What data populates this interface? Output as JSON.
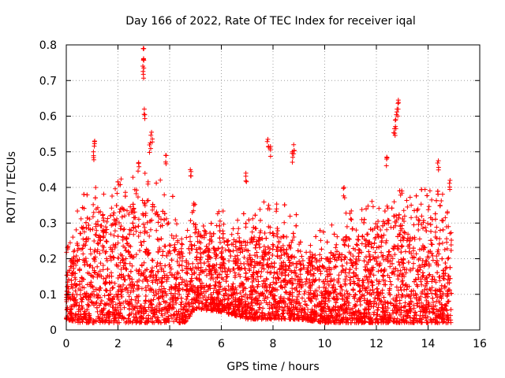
{
  "chart_data": {
    "type": "scatter",
    "title": "Day 166 of 2022, Rate Of TEC Index for receiver iqal",
    "xlabel": "GPS time / hours",
    "ylabel": "ROTI / TECUs",
    "xlim": [
      0,
      16
    ],
    "ylim": [
      0,
      0.8
    ],
    "xticks": [
      0,
      2,
      4,
      6,
      8,
      10,
      12,
      14,
      16
    ],
    "yticks": [
      0,
      0.1,
      0.2,
      0.3,
      0.4,
      0.5,
      0.6,
      0.7,
      0.8
    ],
    "xtick_labels": [
      "0",
      "2",
      "4",
      "6",
      "8",
      "10",
      "12",
      "14",
      "16"
    ],
    "ytick_labels": [
      "0",
      "0.1",
      "0.2",
      "0.3",
      "0.4",
      "0.5",
      "0.6",
      "0.7",
      "0.8"
    ],
    "grid": true,
    "marker": "+",
    "color": "#ff0000",
    "series": [
      {
        "name": "ROTI",
        "x_range": [
          0,
          14.9
        ],
        "notable_points": [
          {
            "x": 2.98,
            "y": 0.79
          },
          {
            "x": 2.99,
            "y": 0.76
          },
          {
            "x": 3.0,
            "y": 0.735
          },
          {
            "x": 3.02,
            "y": 0.62
          },
          {
            "x": 3.3,
            "y": 0.555
          },
          {
            "x": 3.25,
            "y": 0.525
          },
          {
            "x": 12.85,
            "y": 0.645
          },
          {
            "x": 12.8,
            "y": 0.62
          },
          {
            "x": 12.75,
            "y": 0.59
          },
          {
            "x": 12.7,
            "y": 0.565
          },
          {
            "x": 1.1,
            "y": 0.53
          },
          {
            "x": 1.05,
            "y": 0.5
          },
          {
            "x": 7.8,
            "y": 0.535
          },
          {
            "x": 7.9,
            "y": 0.515
          },
          {
            "x": 8.8,
            "y": 0.52
          },
          {
            "x": 8.75,
            "y": 0.5
          },
          {
            "x": 3.85,
            "y": 0.49
          },
          {
            "x": 2.8,
            "y": 0.47
          },
          {
            "x": 14.4,
            "y": 0.475
          },
          {
            "x": 12.4,
            "y": 0.485
          },
          {
            "x": 4.8,
            "y": 0.45
          },
          {
            "x": 6.95,
            "y": 0.44
          },
          {
            "x": 14.85,
            "y": 0.42
          },
          {
            "x": 10.75,
            "y": 0.4
          }
        ],
        "envelope": [
          {
            "x": 0.0,
            "low": 0.03,
            "typical_high": 0.15
          },
          {
            "x": 0.5,
            "low": 0.02,
            "typical_high": 0.28
          },
          {
            "x": 1.0,
            "low": 0.02,
            "typical_high": 0.35
          },
          {
            "x": 2.0,
            "low": 0.02,
            "typical_high": 0.34
          },
          {
            "x": 3.0,
            "low": 0.02,
            "typical_high": 0.38
          },
          {
            "x": 4.0,
            "low": 0.02,
            "typical_high": 0.32
          },
          {
            "x": 4.6,
            "low": 0.02,
            "typical_high": 0.2
          },
          {
            "x": 5.0,
            "low": 0.06,
            "typical_high": 0.3
          },
          {
            "x": 6.0,
            "low": 0.05,
            "typical_high": 0.26
          },
          {
            "x": 7.0,
            "low": 0.03,
            "typical_high": 0.25
          },
          {
            "x": 8.0,
            "low": 0.03,
            "typical_high": 0.3
          },
          {
            "x": 9.0,
            "low": 0.03,
            "typical_high": 0.24
          },
          {
            "x": 10.0,
            "low": 0.02,
            "typical_high": 0.2
          },
          {
            "x": 11.0,
            "low": 0.02,
            "typical_high": 0.28
          },
          {
            "x": 12.0,
            "low": 0.02,
            "typical_high": 0.3
          },
          {
            "x": 13.0,
            "low": 0.02,
            "typical_high": 0.33
          },
          {
            "x": 14.0,
            "low": 0.02,
            "typical_high": 0.32
          },
          {
            "x": 14.9,
            "low": 0.02,
            "typical_high": 0.3
          }
        ]
      }
    ]
  }
}
